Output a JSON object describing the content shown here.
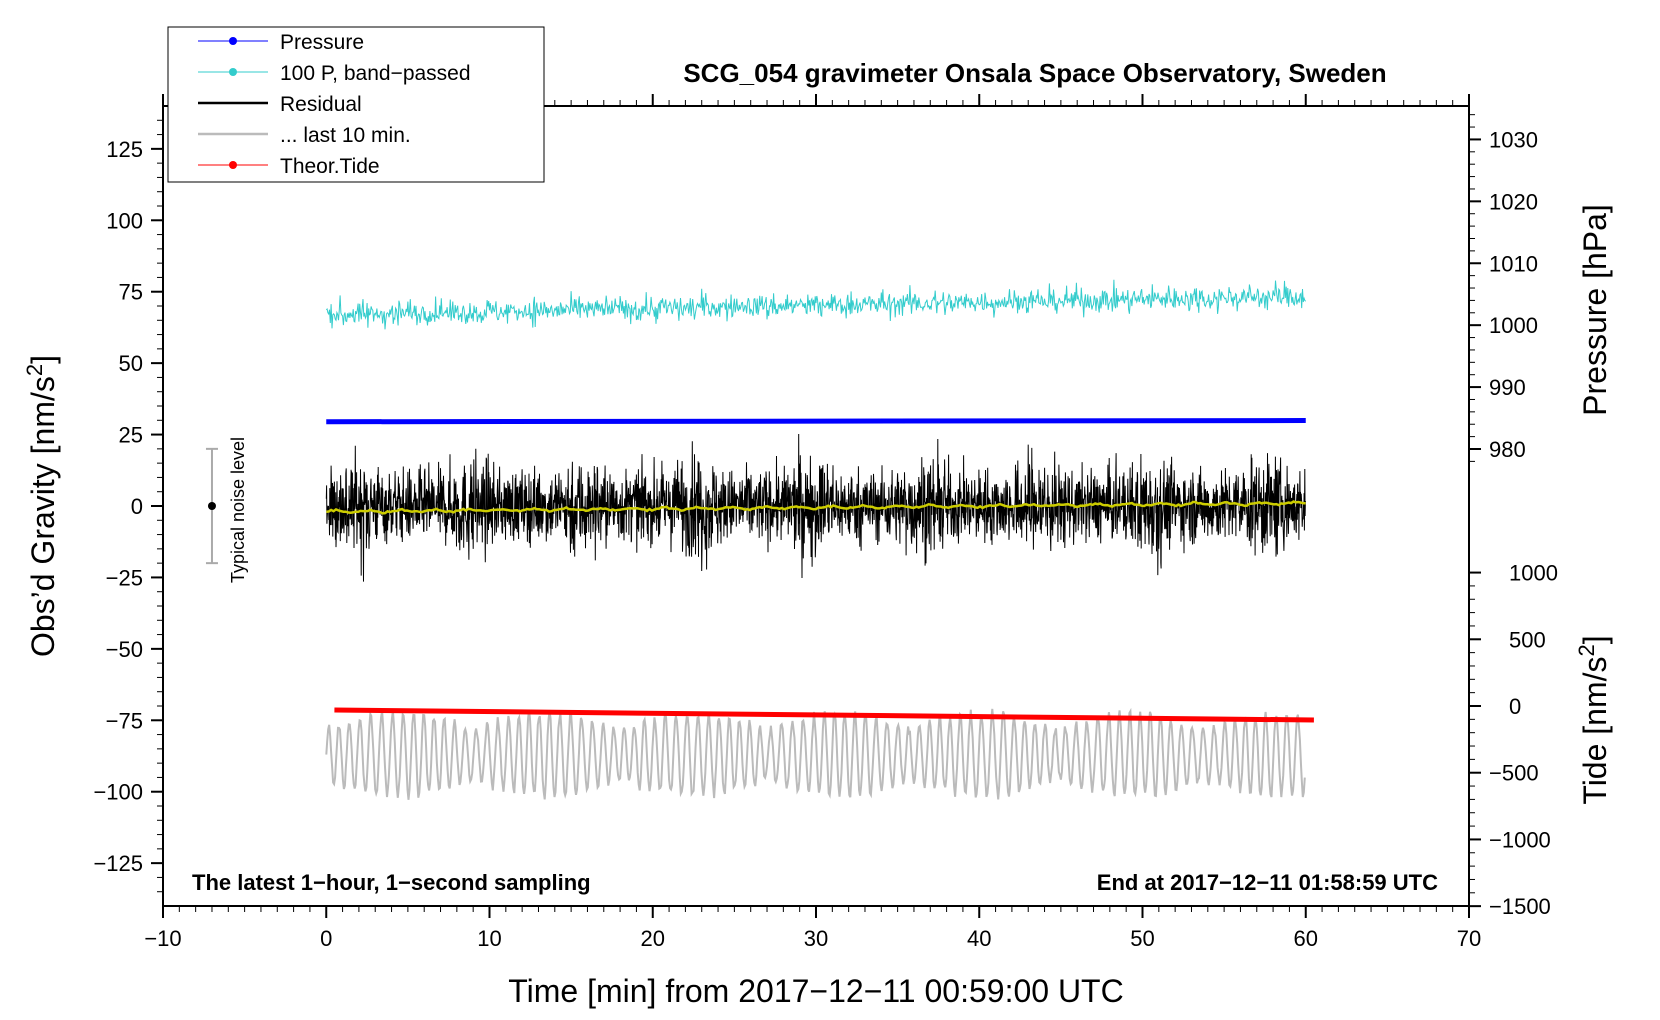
{
  "chart_data": {
    "type": "line",
    "title": "SCG_054 gravimeter Onsala Space Observatory, Sweden",
    "xlabel": "Time [min] from 2017−12−11 00:59:00 UTC",
    "ylabel_left": "Obs’d Gravity [nm/s",
    "ylabel_left_sup": "2",
    "ylabel_left_end": "]",
    "ylabel_pressure": "Pressure [hPa]",
    "ylabel_tide": "Tide [nm/s",
    "ylabel_tide_sup": "2",
    "ylabel_tide_end": "]",
    "xlim": [
      -10,
      70
    ],
    "ylim": [
      -140,
      140
    ],
    "x_ticks": [
      -10,
      0,
      10,
      20,
      30,
      40,
      50,
      60,
      70
    ],
    "x_tick_labels": [
      "−10",
      "0",
      "10",
      "20",
      "30",
      "40",
      "50",
      "60",
      "70"
    ],
    "y_ticks": [
      125,
      100,
      75,
      50,
      25,
      0,
      -25,
      -50,
      -75,
      -100,
      -125
    ],
    "y_tick_labels": [
      "125",
      "100",
      "75",
      "50",
      "25",
      "0",
      "−25",
      "−50",
      "−75",
      "−100",
      "−125"
    ],
    "pressure_axis": {
      "ticks": [
        1030,
        1020,
        1010,
        1000,
        990,
        980
      ],
      "labels": [
        "1030",
        "1020",
        "1010",
        "1000",
        "990",
        "980"
      ],
      "gravity_at_1030": 128.3,
      "gravity_per_hpa": 2.167
    },
    "tide_axis": {
      "ticks": [
        1000,
        500,
        0,
        -500,
        -1000,
        -1500
      ],
      "labels": [
        "1000",
        "500",
        "0",
        "−500",
        "−1000",
        "−1500"
      ],
      "gravity_at_0": -70,
      "gravity_per_unit": 0.0467
    },
    "legend": [
      {
        "label": "Pressure",
        "color": "#0000ff",
        "marker": true
      },
      {
        "label": "100 P, band−passed",
        "color": "#33cccc",
        "marker": true
      },
      {
        "label": "Residual",
        "color": "#000000",
        "marker": false
      },
      {
        "label": "... last 10 min.",
        "color": "#bbbbbb",
        "marker": false
      },
      {
        "label": "Theor.Tide",
        "color": "#ff0000",
        "marker": true
      }
    ],
    "notes": {
      "left": "The latest 1−hour, 1−second sampling",
      "right": "End at 2017−12−11 01:58:59 UTC"
    },
    "noise_marker": {
      "label": "Typical noise level",
      "x": -7,
      "center": 0,
      "low": -20,
      "high": 20
    },
    "series": [
      {
        "name": "Pressure",
        "color": "#0000ff",
        "x_range": [
          0,
          60
        ],
        "level_hpa": 984.4,
        "level_hpa_end": 984.6
      },
      {
        "name": "100 P, band−passed",
        "color": "#33cccc",
        "x_range": [
          0,
          60
        ],
        "baseline_start": 67,
        "baseline_end": 73.5,
        "amplitude": 4
      },
      {
        "name": "Residual",
        "color": "#000000",
        "x_range": [
          0,
          60
        ],
        "center": 0,
        "amplitude": 14
      },
      {
        "name": "Residual smoothed",
        "color": "#cccc00",
        "x_range": [
          0,
          60
        ],
        "start": -2,
        "end": 1
      },
      {
        "name": "... last 10 min.",
        "color": "#bbbbbb",
        "x_range": [
          0,
          60
        ],
        "center": -87,
        "amplitude": 13
      },
      {
        "name": "Theor.Tide",
        "color": "#ff0000",
        "x_range": [
          0.5,
          60.5
        ],
        "start_tide": -30,
        "end_tide": -105
      }
    ]
  }
}
